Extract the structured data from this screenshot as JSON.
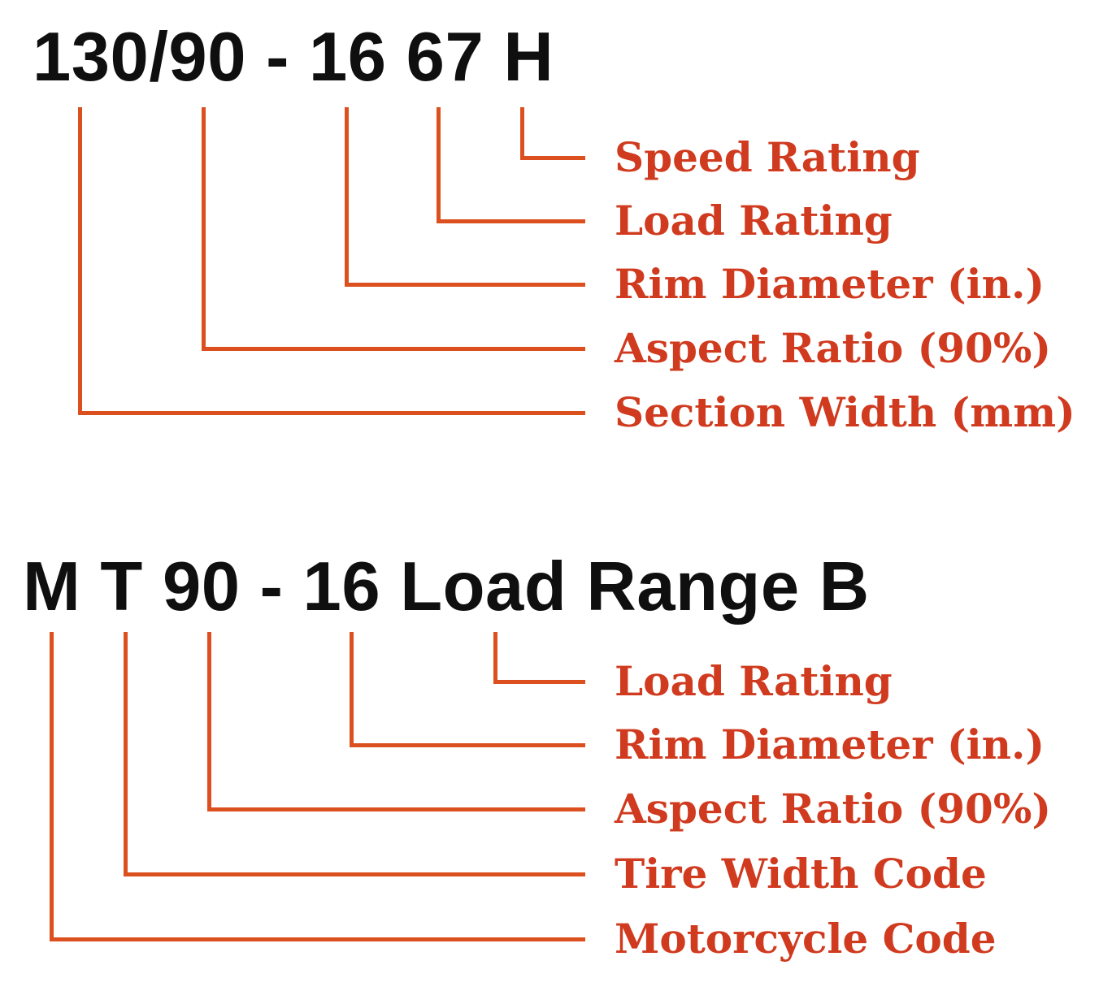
{
  "colors": {
    "background": "#ffffff",
    "heading": "#0f0f0f",
    "line": "#dc501f",
    "label": "#d03a1e"
  },
  "diagram_top": {
    "code": "130/90 - 16 67 H",
    "items": [
      {
        "label": "Speed Rating"
      },
      {
        "label": "Load Rating"
      },
      {
        "label": "Rim Diameter (in.)"
      },
      {
        "label": "Aspect Ratio (90%)"
      },
      {
        "label": "Section Width (mm)"
      }
    ]
  },
  "diagram_bottom": {
    "code": "M T 90 - 16 Load Range B",
    "items": [
      {
        "label": "Load Rating"
      },
      {
        "label": "Rim Diameter (in.)"
      },
      {
        "label": "Aspect Ratio (90%)"
      },
      {
        "label": "Tire Width Code"
      },
      {
        "label": "Motorcycle Code"
      }
    ]
  }
}
